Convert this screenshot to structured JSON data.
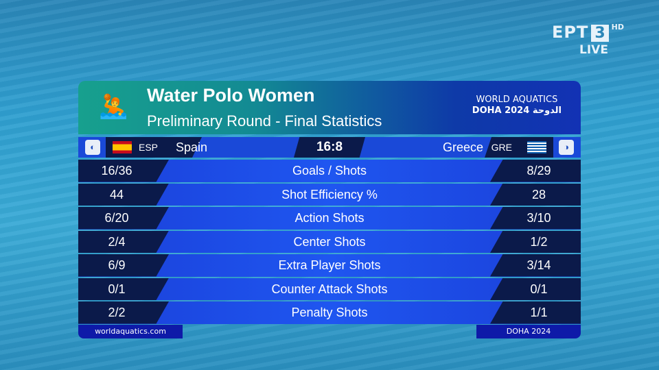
{
  "broadcaster": {
    "channel": "EPT",
    "number": "3",
    "quality": "HD",
    "status": "LIVE"
  },
  "header": {
    "title": "Water Polo Women",
    "subtitle": "Preliminary Round - Final Statistics",
    "event_line1": "WORLD AQUATICS",
    "event_line2": "DOHA 2024 الدوحة",
    "icon": "water-polo-player-icon"
  },
  "match": {
    "home": {
      "code": "ESP",
      "name": "Spain"
    },
    "away": {
      "code": "GRE",
      "name": "Greece"
    },
    "score": "16:8"
  },
  "stats": [
    {
      "label": "Goals / Shots",
      "home": "16/36",
      "away": "8/29"
    },
    {
      "label": "Shot Efficiency %",
      "home": "44",
      "away": "28"
    },
    {
      "label": "Action Shots",
      "home": "6/20",
      "away": "3/10"
    },
    {
      "label": "Center Shots",
      "home": "2/4",
      "away": "1/2"
    },
    {
      "label": "Extra Player Shots",
      "home": "6/9",
      "away": "3/14"
    },
    {
      "label": "Counter Attack Shots",
      "home": "0/1",
      "away": "0/1"
    },
    {
      "label": "Penalty Shots",
      "home": "2/2",
      "away": "1/1"
    }
  ],
  "footer": {
    "left": "worldaquatics.com",
    "right": "DOHA 2024"
  }
}
